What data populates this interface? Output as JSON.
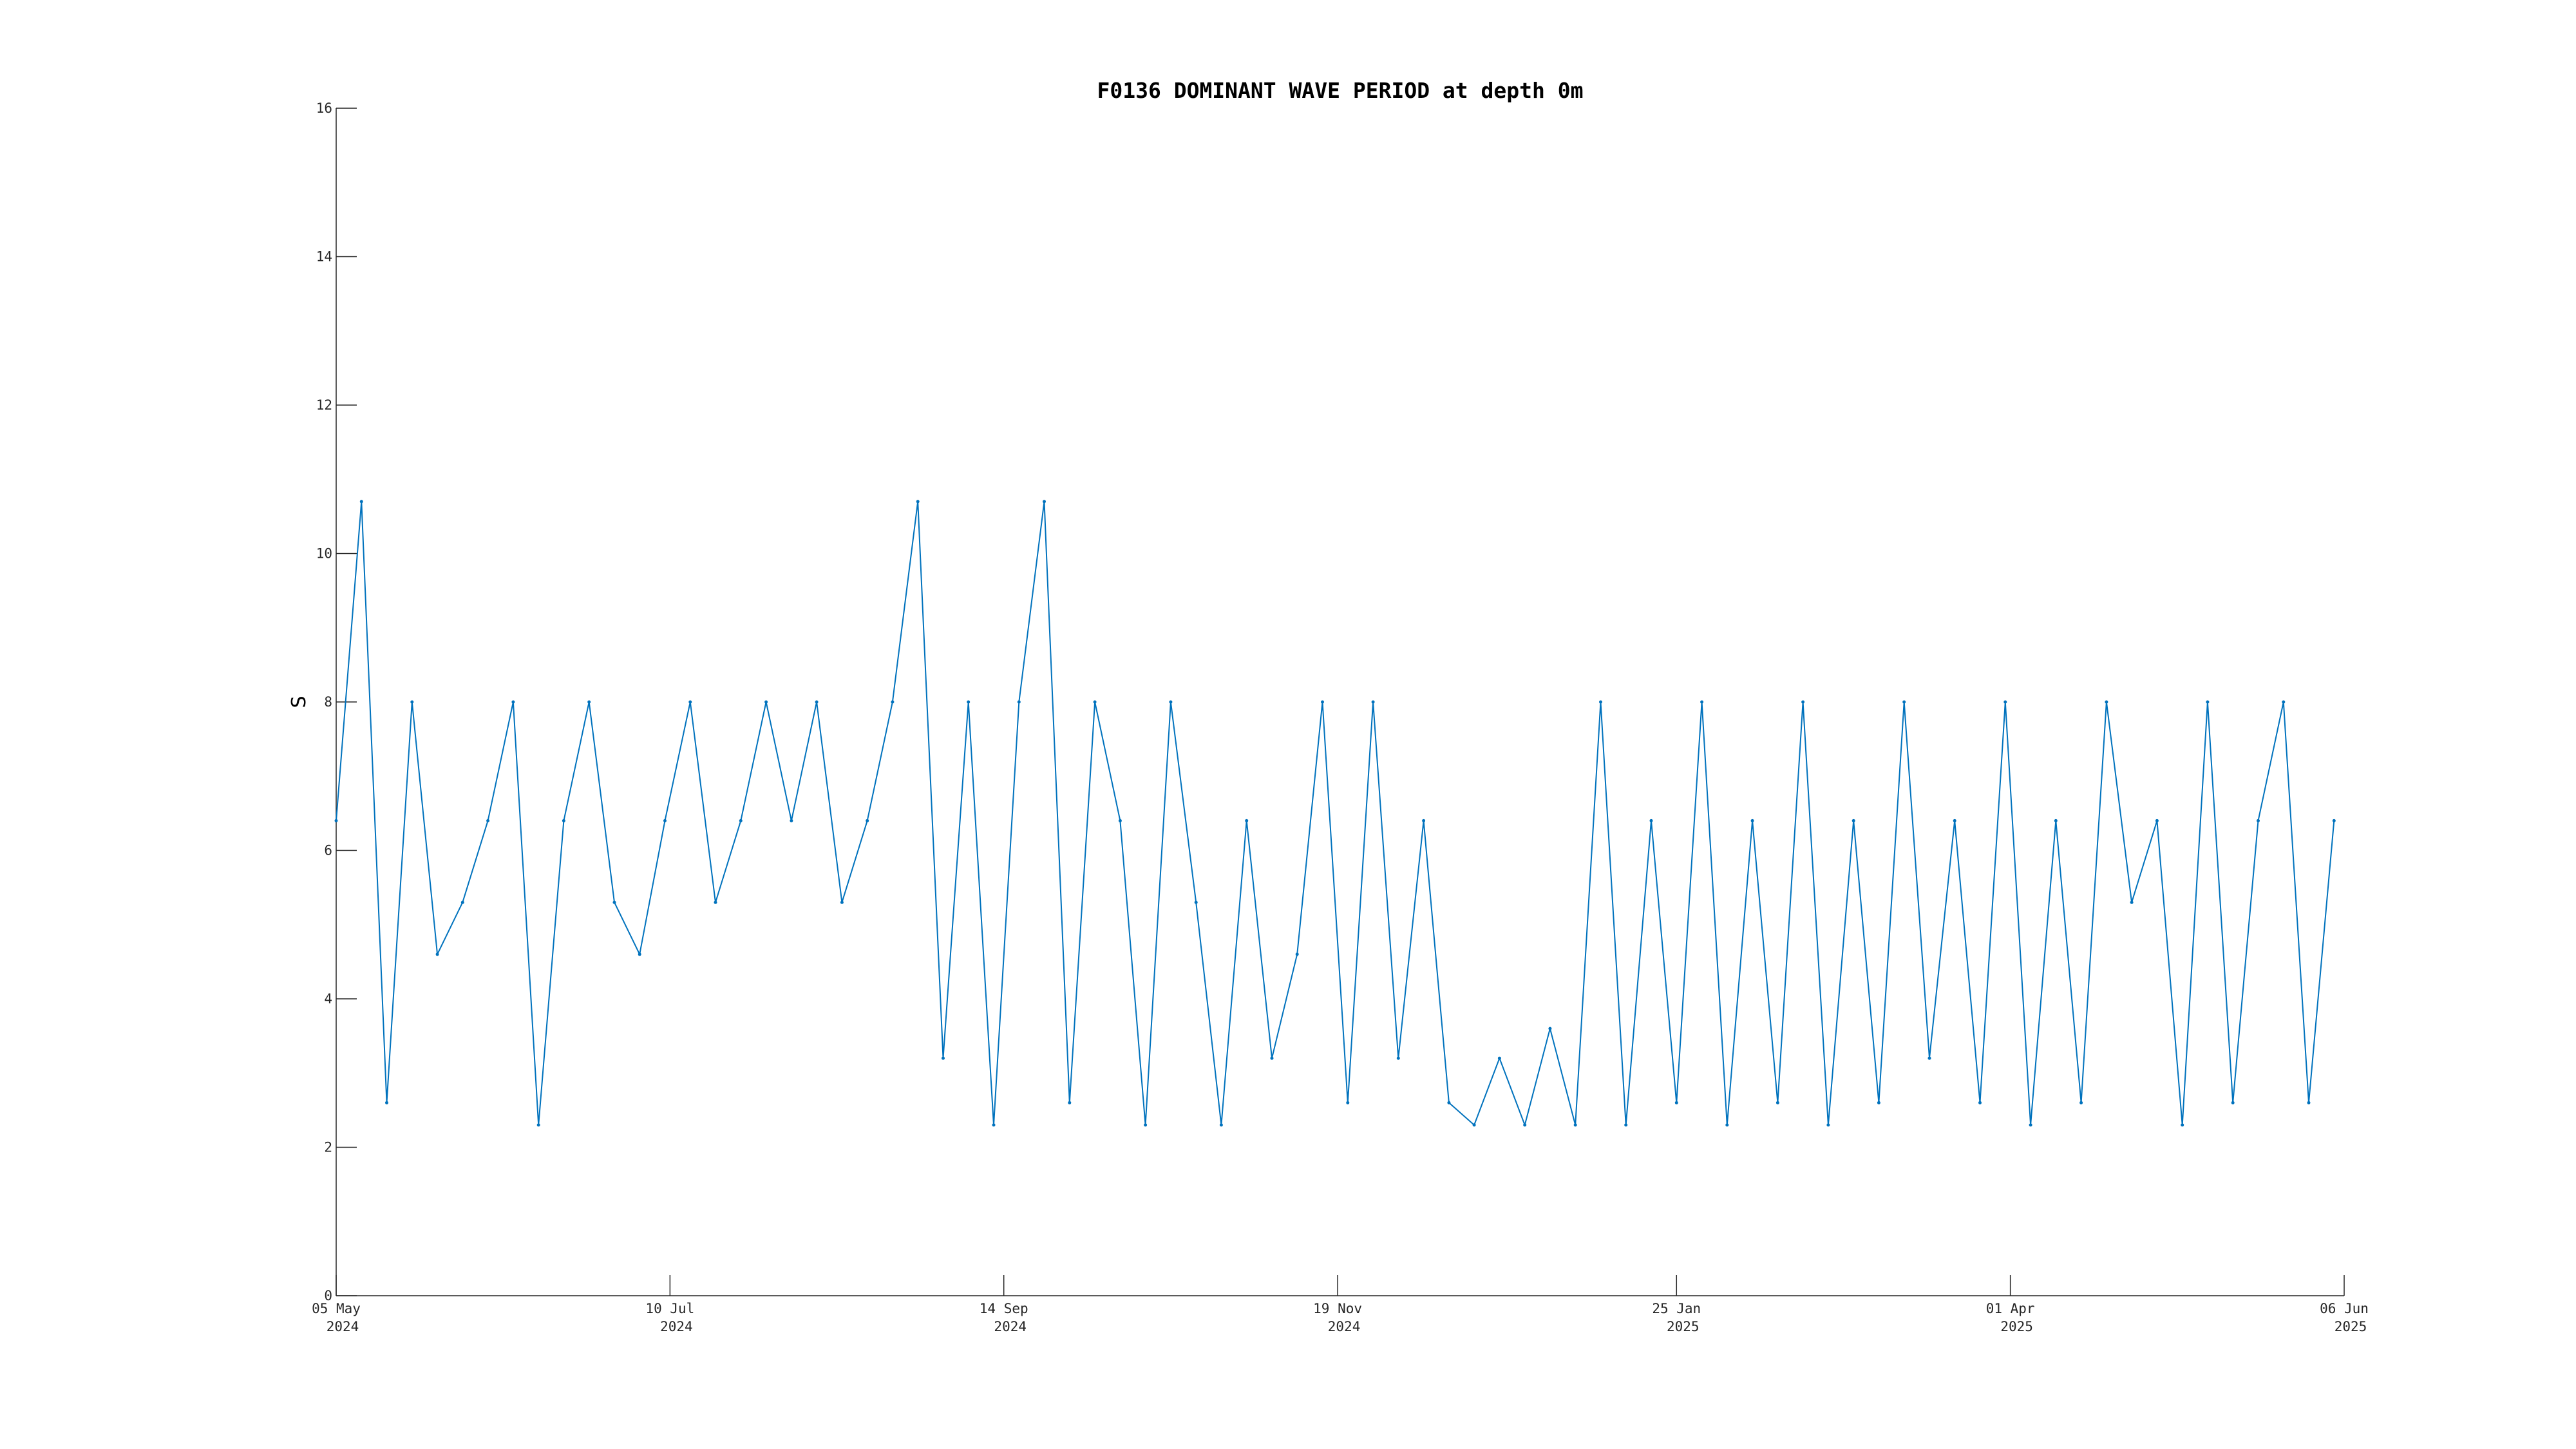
{
  "chart_data": {
    "type": "line",
    "title": "F0136 DOMINANT WAVE PERIOD at depth 0m",
    "xlabel": "",
    "ylabel": "S",
    "ylim": [
      0,
      16
    ],
    "xlim": [
      "2024-05-05",
      "2025-06-06"
    ],
    "yticks": [
      0,
      2,
      4,
      6,
      8,
      10,
      12,
      14,
      16
    ],
    "xticks": [
      {
        "date": "2024-05-05",
        "line1": "05 May",
        "line2": "2024"
      },
      {
        "date": "2024-07-10",
        "line1": "10 Jul",
        "line2": "2024"
      },
      {
        "date": "2024-09-14",
        "line1": "14 Sep",
        "line2": "2024"
      },
      {
        "date": "2024-11-19",
        "line1": "19 Nov",
        "line2": "2024"
      },
      {
        "date": "2025-01-25",
        "line1": "25 Jan",
        "line2": "2025"
      },
      {
        "date": "2025-04-01",
        "line1": "01 Apr",
        "line2": "2025"
      },
      {
        "date": "2025-06-06",
        "line1": "06 Jun",
        "line2": "2025"
      }
    ],
    "grid": false,
    "line_color": "#0072BD",
    "series": [
      {
        "name": "",
        "x": [
          "2024-05-05",
          "2024-05-10",
          "2024-05-15",
          "2024-05-20",
          "2024-05-25",
          "2024-05-30",
          "2024-06-04",
          "2024-06-09",
          "2024-06-14",
          "2024-06-19",
          "2024-06-24",
          "2024-06-29",
          "2024-07-04",
          "2024-07-09",
          "2024-07-14",
          "2024-07-19",
          "2024-07-24",
          "2024-07-29",
          "2024-08-03",
          "2024-08-08",
          "2024-08-13",
          "2024-08-18",
          "2024-08-23",
          "2024-08-28",
          "2024-09-02",
          "2024-09-07",
          "2024-09-12",
          "2024-09-17",
          "2024-09-22",
          "2024-09-27",
          "2024-10-02",
          "2024-10-07",
          "2024-10-12",
          "2024-10-17",
          "2024-10-22",
          "2024-10-27",
          "2024-11-01",
          "2024-11-06",
          "2024-11-11",
          "2024-11-16",
          "2024-11-21",
          "2024-11-26",
          "2024-12-01",
          "2024-12-06",
          "2024-12-11",
          "2024-12-16",
          "2024-12-21",
          "2024-12-26",
          "2024-12-31",
          "2025-01-05",
          "2025-01-10",
          "2025-01-15",
          "2025-01-20",
          "2025-01-25",
          "2025-01-30",
          "2025-02-04",
          "2025-02-09",
          "2025-02-14",
          "2025-02-19",
          "2025-02-24",
          "2025-03-01",
          "2025-03-06",
          "2025-03-11",
          "2025-03-16",
          "2025-03-21",
          "2025-03-26",
          "2025-03-31",
          "2025-04-05",
          "2025-04-10",
          "2025-04-15",
          "2025-04-20",
          "2025-04-25",
          "2025-04-30",
          "2025-05-05",
          "2025-05-10",
          "2025-05-15",
          "2025-05-20",
          "2025-05-25",
          "2025-05-30",
          "2025-06-04"
        ],
        "y": [
          6.4,
          10.7,
          2.6,
          8.0,
          4.6,
          5.3,
          6.4,
          8.0,
          2.3,
          6.4,
          8.0,
          5.3,
          4.6,
          6.4,
          8.0,
          5.3,
          6.4,
          8.0,
          6.4,
          8.0,
          5.3,
          6.4,
          8.0,
          10.7,
          3.2,
          8.0,
          2.3,
          8.0,
          10.7,
          2.6,
          8.0,
          6.4,
          2.3,
          8.0,
          5.3,
          2.3,
          6.4,
          3.2,
          4.6,
          8.0,
          2.6,
          8.0,
          3.2,
          6.4,
          2.6,
          2.3,
          3.2,
          2.3,
          3.6,
          2.3,
          8.0,
          2.3,
          6.4,
          2.6,
          8.0,
          2.3,
          6.4,
          2.6,
          8.0,
          2.3,
          6.4,
          2.6,
          8.0,
          3.2,
          6.4,
          2.6,
          8.0,
          2.3,
          6.4,
          2.6,
          8.0,
          5.3,
          6.4,
          2.3,
          8.0,
          2.6,
          6.4,
          8.0,
          2.6,
          6.4
        ]
      }
    ]
  }
}
